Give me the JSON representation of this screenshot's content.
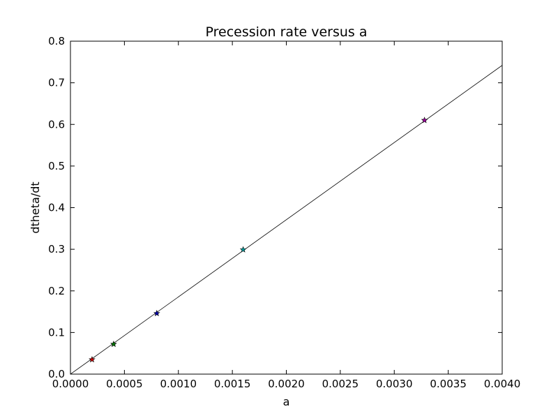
{
  "chart_data": {
    "type": "scatter",
    "title": "Precession rate versus a",
    "xlabel": "a",
    "ylabel": "dtheta/dt",
    "xlim": [
      0,
      0.004
    ],
    "ylim": [
      0,
      0.8
    ],
    "xticks": [
      "0.0000",
      "0.0005",
      "0.0010",
      "0.0015",
      "0.0020",
      "0.0025",
      "0.0030",
      "0.0035",
      "0.0040"
    ],
    "yticks": [
      "0.0",
      "0.1",
      "0.2",
      "0.3",
      "0.4",
      "0.5",
      "0.6",
      "0.7",
      "0.8"
    ],
    "grid": false,
    "points": [
      {
        "x": 0.0002,
        "y": 0.035,
        "color": "#cc0000"
      },
      {
        "x": 0.0004,
        "y": 0.072,
        "color": "#007700"
      },
      {
        "x": 0.0008,
        "y": 0.146,
        "color": "#0000aa"
      },
      {
        "x": 0.0016,
        "y": 0.299,
        "color": "#009999"
      },
      {
        "x": 0.00328,
        "y": 0.61,
        "color": "#990099"
      }
    ],
    "fit_line": {
      "x": [
        0,
        0.004
      ],
      "y": [
        0,
        0.742
      ],
      "color": "#000000"
    }
  }
}
